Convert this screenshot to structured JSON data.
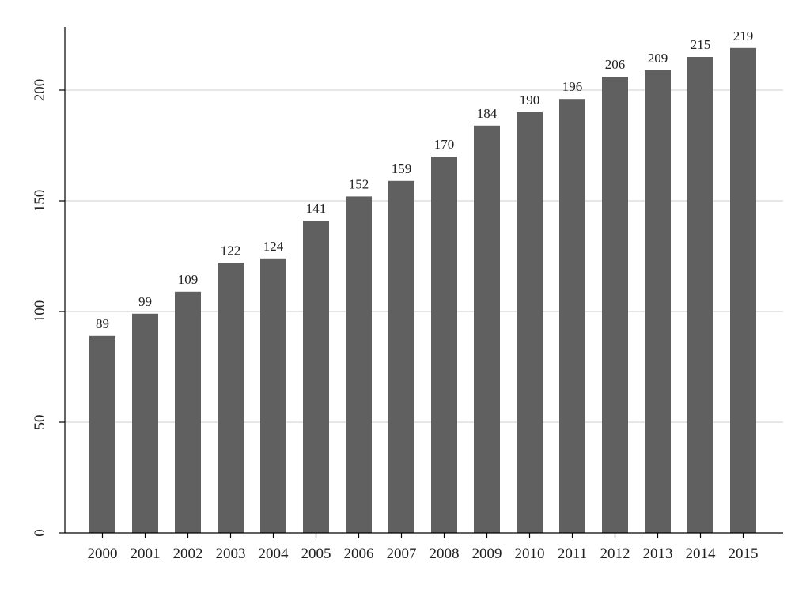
{
  "chart_data": {
    "type": "bar",
    "categories": [
      "2000",
      "2001",
      "2002",
      "2003",
      "2004",
      "2005",
      "2006",
      "2007",
      "2008",
      "2009",
      "2010",
      "2011",
      "2012",
      "2013",
      "2014",
      "2015"
    ],
    "values": [
      89,
      99,
      109,
      122,
      124,
      141,
      152,
      159,
      170,
      184,
      190,
      196,
      206,
      209,
      215,
      219
    ],
    "title": "",
    "xlabel": "",
    "ylabel": "",
    "ylim": [
      0,
      228
    ],
    "yticks": [
      0,
      50,
      100,
      150,
      200
    ],
    "grid": true,
    "data_labels": true,
    "bar_color": "#606060",
    "grid_color": "#dddddd",
    "axis_color": "#000000"
  }
}
